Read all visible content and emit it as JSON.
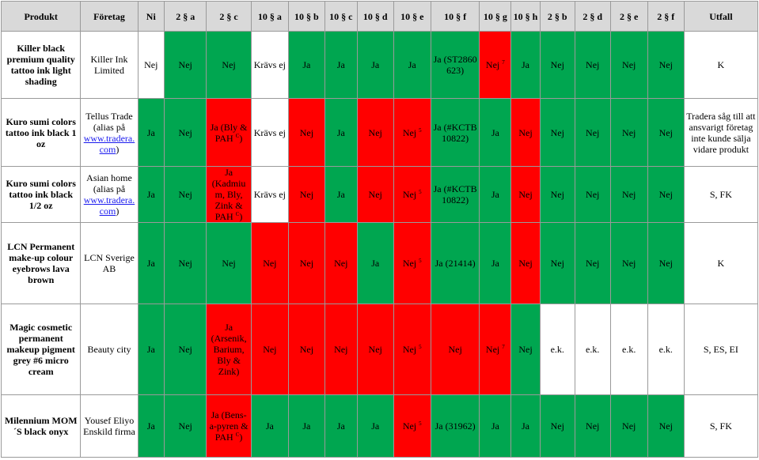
{
  "colors": {
    "green": "#00a650",
    "red": "#ff0000",
    "white": "#ffffff",
    "header": "#d9d9d9",
    "link": "#1a1aee"
  },
  "headers": [
    "Produkt",
    "Företag",
    "Ni",
    "2 § a",
    "2 § c",
    "10 § a",
    "10 § b",
    "10 § c",
    "10 § d",
    "10 § e",
    "10 § f",
    "10 § g",
    "10 § h",
    "2 § b",
    "2 § d",
    "2 § e",
    "2 § f",
    "Utfall"
  ],
  "rows": [
    {
      "product": "Killer black premium quality tattoo ink light shading",
      "company": "Killer Ink Limited",
      "cells": [
        {
          "text": "Nej",
          "color": "white"
        },
        {
          "text": "Nej",
          "color": "green"
        },
        {
          "text": "Nej",
          "color": "green"
        },
        {
          "text": "Krävs ej",
          "color": "white"
        },
        {
          "text": "Ja",
          "color": "green"
        },
        {
          "text": "Ja",
          "color": "green"
        },
        {
          "text": "Ja",
          "color": "green"
        },
        {
          "text": "Ja",
          "color": "green"
        },
        {
          "text": "Ja (ST2860 623)",
          "color": "green"
        },
        {
          "text": "Nej",
          "sup": "7",
          "color": "red"
        },
        {
          "text": "Ja",
          "color": "green"
        },
        {
          "text": "Nej",
          "color": "green"
        },
        {
          "text": "Nej",
          "color": "green"
        },
        {
          "text": "Nej",
          "color": "green"
        },
        {
          "text": "Nej",
          "color": "green"
        }
      ],
      "outcome": "K"
    },
    {
      "product": "Kuro sumi colors tattoo ink black 1 oz",
      "company_pre": "Tellus Trade (alias på",
      "company_link": "www.tradera.com",
      "company_post": ")",
      "cells": [
        {
          "text": "Ja",
          "color": "green"
        },
        {
          "text": "Nej",
          "color": "green"
        },
        {
          "text": "Ja (Bly & PAH",
          "sup": "C",
          "after": ")",
          "color": "red"
        },
        {
          "text": "Krävs ej",
          "color": "white"
        },
        {
          "text": "Nej",
          "color": "red"
        },
        {
          "text": "Ja",
          "color": "green"
        },
        {
          "text": "Nej",
          "color": "red"
        },
        {
          "text": "Nej",
          "sup": "5",
          "color": "red"
        },
        {
          "text": "Ja (#KCTB 10822)",
          "color": "green"
        },
        {
          "text": "Ja",
          "color": "green"
        },
        {
          "text": "Nej",
          "color": "red"
        },
        {
          "text": "Nej",
          "color": "green"
        },
        {
          "text": "Nej",
          "color": "green"
        },
        {
          "text": "Nej",
          "color": "green"
        },
        {
          "text": "Nej",
          "color": "green"
        }
      ],
      "outcome": "Tradera såg till att ansvarigt företag inte kunde sälja vidare produkt"
    },
    {
      "product": "Kuro sumi colors tattoo ink black 1/2 oz",
      "company_pre": "Asian home (alias på",
      "company_link": "www.tradera.com",
      "company_post": ")",
      "cells": [
        {
          "text": "Ja",
          "color": "green"
        },
        {
          "text": "Nej",
          "color": "green"
        },
        {
          "text": "Ja (Kadmium, Bly, Zink & PAH",
          "sup": "C",
          "after": ")",
          "color": "red"
        },
        {
          "text": "Krävs ej",
          "color": "white"
        },
        {
          "text": "Nej",
          "color": "red"
        },
        {
          "text": "Ja",
          "color": "green"
        },
        {
          "text": "Nej",
          "color": "red"
        },
        {
          "text": "Nej",
          "sup": "5",
          "color": "red"
        },
        {
          "text": "Ja (#KCTB 10822)",
          "color": "green"
        },
        {
          "text": "Ja",
          "color": "green"
        },
        {
          "text": "Nej",
          "color": "red"
        },
        {
          "text": "Nej",
          "color": "green"
        },
        {
          "text": "Nej",
          "color": "green"
        },
        {
          "text": "Nej",
          "color": "green"
        },
        {
          "text": "Nej",
          "color": "green"
        }
      ],
      "outcome": "S, FK"
    },
    {
      "product": "LCN Permanent make-up colour eyebrows lava brown",
      "company": "LCN Sverige AB",
      "cells": [
        {
          "text": "Ja",
          "color": "green"
        },
        {
          "text": "Nej",
          "color": "green"
        },
        {
          "text": "Nej",
          "color": "green"
        },
        {
          "text": "Nej",
          "color": "red"
        },
        {
          "text": "Nej",
          "color": "red"
        },
        {
          "text": "Nej",
          "color": "red"
        },
        {
          "text": "Ja",
          "color": "green"
        },
        {
          "text": "Nej",
          "sup": "5",
          "color": "red"
        },
        {
          "text": "Ja (21414)",
          "color": "green"
        },
        {
          "text": "Ja",
          "color": "green"
        },
        {
          "text": "Nej",
          "color": "red"
        },
        {
          "text": "Nej",
          "color": "green"
        },
        {
          "text": "Nej",
          "color": "green"
        },
        {
          "text": "Nej",
          "color": "green"
        },
        {
          "text": "Nej",
          "color": "green"
        }
      ],
      "outcome": "K"
    },
    {
      "product": "Magic cosmetic permanent makeup pigment grey #6 micro cream",
      "company": "Beauty city",
      "cells": [
        {
          "text": "Ja",
          "color": "green"
        },
        {
          "text": "Nej",
          "color": "green"
        },
        {
          "text": "Ja (Arsenik, Barium, Bly & Zink)",
          "color": "red"
        },
        {
          "text": "Nej",
          "color": "red"
        },
        {
          "text": "Nej",
          "color": "red"
        },
        {
          "text": "Nej",
          "color": "red"
        },
        {
          "text": "Nej",
          "color": "red"
        },
        {
          "text": "Nej",
          "sup": "5",
          "color": "red"
        },
        {
          "text": "Nej",
          "color": "red"
        },
        {
          "text": "Nej",
          "sup": "7",
          "color": "red"
        },
        {
          "text": "Nej",
          "color": "green"
        },
        {
          "text": "e.k.",
          "color": "white"
        },
        {
          "text": "e.k.",
          "color": "white"
        },
        {
          "text": "e.k.",
          "color": "white"
        },
        {
          "text": "e.k.",
          "color": "white"
        }
      ],
      "outcome": "S, ES, EI"
    },
    {
      "product": "Milennium MOM´S black onyx",
      "company": "Yousef Eliyo Enskild firma",
      "cells": [
        {
          "text": "Ja",
          "color": "green"
        },
        {
          "text": "Nej",
          "color": "green"
        },
        {
          "text": "Ja (Bens-a-pyren & PAH",
          "sup": "C",
          "after": ")",
          "color": "red"
        },
        {
          "text": "Ja",
          "color": "green"
        },
        {
          "text": "Ja",
          "color": "green"
        },
        {
          "text": "Ja",
          "color": "green"
        },
        {
          "text": "Ja",
          "color": "green"
        },
        {
          "text": "Nej",
          "sup": "5",
          "color": "red"
        },
        {
          "text": "Ja (31962)",
          "color": "green"
        },
        {
          "text": "Ja",
          "color": "green"
        },
        {
          "text": "Ja",
          "color": "green"
        },
        {
          "text": "Nej",
          "color": "green"
        },
        {
          "text": "Nej",
          "color": "green"
        },
        {
          "text": "Nej",
          "color": "green"
        },
        {
          "text": "Nej",
          "color": "green"
        }
      ],
      "outcome": "S, FK"
    }
  ]
}
